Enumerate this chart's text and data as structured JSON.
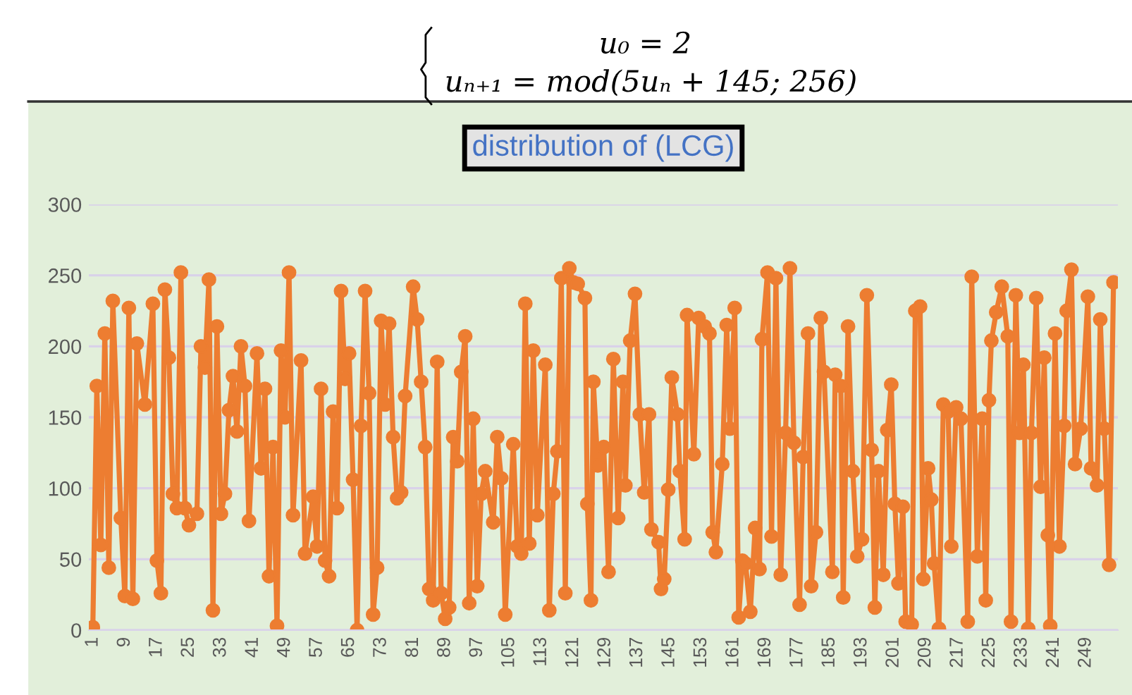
{
  "chart_data": {
    "type": "line",
    "title": "distribution of (LCG)",
    "annotations": [
      "u₀ = 2",
      "uₙ₊₁ = mod(5uₙ + 145; 256)"
    ],
    "series": [
      {
        "color": "#ed7d31",
        "x": [
          1,
          2,
          3,
          4,
          5,
          6,
          8,
          9,
          10,
          11,
          12,
          14,
          16,
          17,
          18,
          19,
          20,
          21,
          22,
          23,
          24,
          25,
          27,
          28,
          29,
          30,
          31,
          32,
          33,
          34,
          35,
          36,
          37,
          38,
          39,
          40,
          42,
          43,
          44,
          45,
          46,
          47,
          48,
          49,
          50,
          51,
          53,
          54,
          56,
          57,
          58,
          59,
          60,
          61,
          62,
          63,
          64,
          65,
          66,
          67,
          68,
          69,
          70,
          71,
          72,
          73,
          74,
          75,
          76,
          77,
          78,
          79,
          81,
          82,
          83,
          84,
          85,
          86,
          87,
          88,
          89,
          90,
          91,
          92,
          93,
          94,
          95,
          96,
          97,
          98,
          99,
          101,
          102,
          103,
          104,
          106,
          107,
          108,
          109,
          110,
          111,
          112,
          114,
          115,
          116,
          117,
          118,
          119,
          120,
          121,
          122.1,
          123.9,
          124.5,
          125.4,
          126,
          127.1,
          128.6,
          129.8,
          131,
          132.2,
          133.4,
          134,
          135.2,
          136.4,
          137.6,
          138.7,
          139.9,
          140.5,
          142.3,
          142.9,
          143.7,
          144.7,
          145.6,
          147,
          147.6,
          148.8,
          149.4,
          151.1,
          152.3,
          153.8,
          155,
          155.8,
          156.6,
          158.2,
          159.3,
          160.1,
          161.3,
          162.3,
          163.2,
          164,
          165.2,
          166.4,
          167.5,
          168.1,
          169.5,
          170.5,
          171.6,
          172.8,
          174,
          175.1,
          176.1,
          177.5,
          178.4,
          179.6,
          180.4,
          181.6,
          182.8,
          183.6,
          185.7,
          186.4,
          187.8,
          188.4,
          189.6,
          190.8,
          191.9,
          193.1,
          194.3,
          195.5,
          196.3,
          197.2,
          198.4,
          199.4,
          200.4,
          201.3,
          202.2,
          203.3,
          204,
          205.5,
          206.4,
          207.6,
          208.4,
          209.6,
          210.4,
          211.1,
          212.3,
          213.4,
          214.6,
          215.4,
          216.6,
          217.8,
          219.5,
          220.5,
          221.9,
          223.1,
          224,
          224.8,
          225.4,
          226.6,
          228,
          229.5,
          230.3,
          231.5,
          232.4,
          233.4,
          234.6,
          235.4,
          236.6,
          237.7,
          238.6,
          239.5,
          240.1,
          241.3,
          242.4,
          243.6,
          244.2,
          245.4,
          246.3,
          247.7,
          249.5,
          250.3,
          251.8,
          252.6,
          253.6,
          254.8,
          255.9
        ],
        "values": [
          2,
          172,
          60,
          209,
          44,
          232,
          79,
          24,
          227,
          22,
          202,
          159,
          230,
          49,
          26,
          240,
          192,
          96,
          86,
          252,
          86,
          74,
          82,
          200,
          185,
          247,
          14,
          214,
          82,
          96,
          155,
          179,
          140,
          200,
          172,
          77,
          195,
          114,
          170,
          38,
          129,
          3,
          197,
          150,
          252,
          81,
          190,
          54,
          94,
          59,
          170,
          49,
          38,
          154,
          86,
          239,
          177,
          195,
          106,
          0,
          144,
          239,
          167,
          11,
          44,
          218,
          159,
          216,
          136,
          93,
          97,
          165,
          242,
          219,
          175,
          129,
          29,
          21,
          189,
          26,
          8,
          16,
          136,
          119,
          182,
          207,
          19,
          149,
          31,
          96,
          112,
          76,
          136,
          107,
          11,
          131,
          59,
          54,
          230,
          61,
          197,
          81,
          187,
          14,
          96,
          126,
          248,
          26,
          255,
          245,
          244,
          234,
          89,
          21,
          175,
          116,
          129,
          41,
          191,
          79,
          175,
          102,
          204,
          237,
          152,
          97,
          152,
          71,
          62,
          29,
          36,
          99,
          178,
          152,
          112,
          64,
          222,
          124,
          220,
          214,
          209,
          69,
          55,
          117,
          215,
          142,
          227,
          9,
          49,
          47,
          13,
          72,
          43,
          205,
          252,
          66,
          248,
          39,
          139,
          255,
          132,
          18,
          122,
          209,
          31,
          69,
          220,
          182,
          41,
          180,
          172,
          23,
          214,
          112,
          52,
          64,
          236,
          127,
          16,
          112,
          39,
          141,
          173,
          89,
          33,
          87,
          6,
          4,
          225,
          228,
          36,
          114,
          92,
          47,
          1,
          159,
          154,
          59,
          157,
          149,
          6,
          249,
          52,
          149,
          21,
          162,
          204,
          224,
          242,
          207,
          6,
          236,
          139,
          187,
          1,
          139,
          234,
          101,
          192,
          67,
          3,
          209,
          59,
          144,
          225,
          254,
          117,
          142,
          235,
          114,
          102,
          219,
          142,
          46,
          245
        ]
      }
    ],
    "xlim": [
      0,
      257
    ],
    "xticks": [
      1,
      9,
      17,
      25,
      33,
      41,
      49,
      57,
      65,
      73,
      81,
      89,
      97,
      105,
      113,
      121,
      129,
      137,
      145,
      153,
      161,
      169,
      177,
      185,
      193,
      201,
      209,
      217,
      225,
      233,
      241,
      249
    ],
    "ylim": [
      0,
      300
    ],
    "yticks": [
      0,
      50,
      100,
      150,
      200,
      250,
      300
    ],
    "grid": "y",
    "legend": false,
    "marker": "circle",
    "line_style": "solid"
  }
}
